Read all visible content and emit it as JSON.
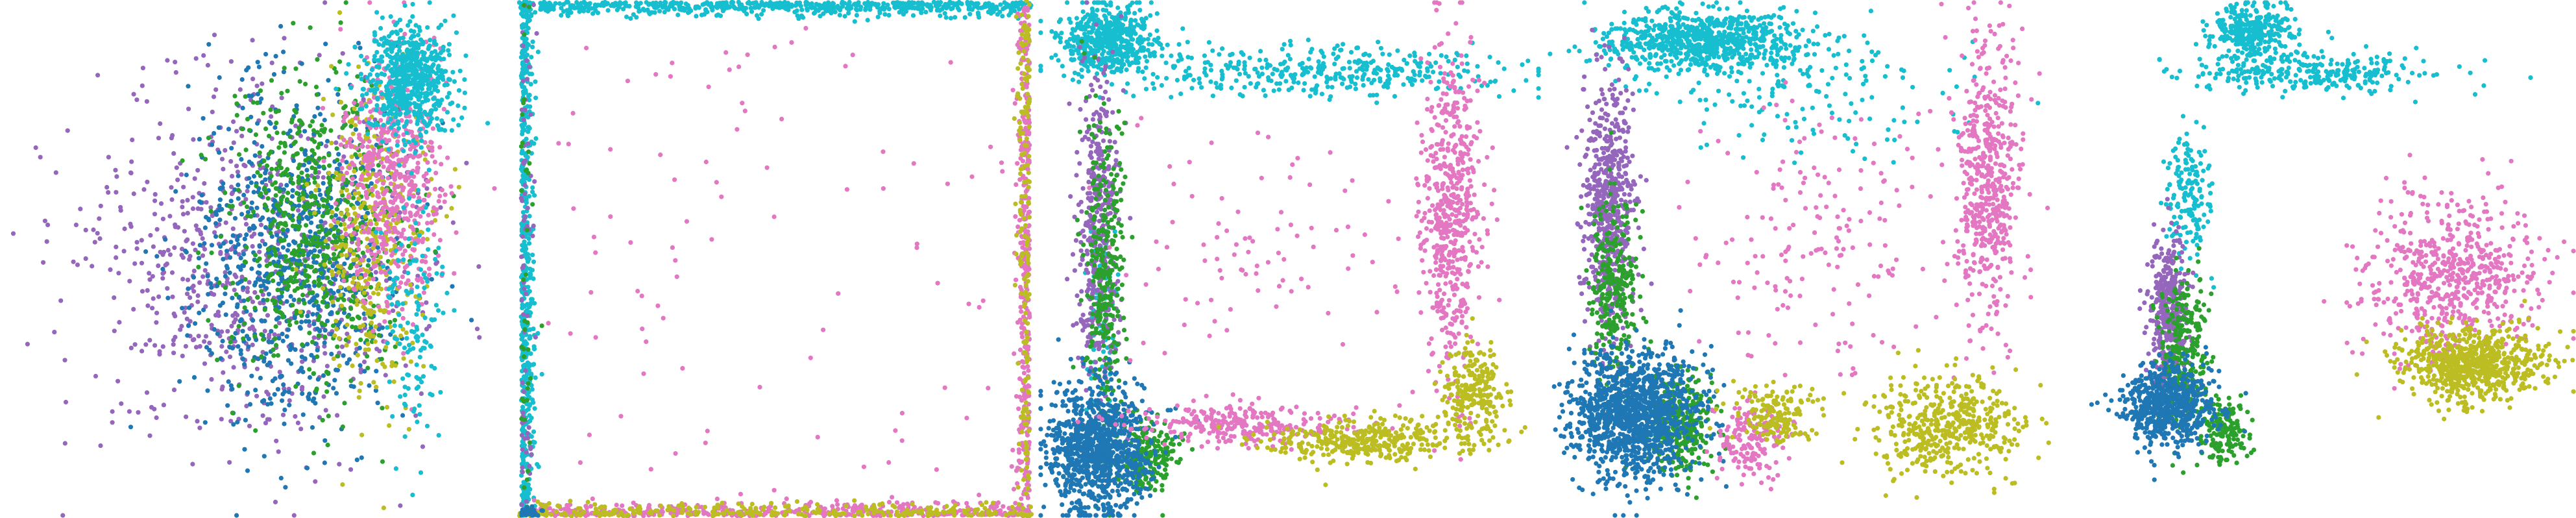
{
  "chart_data": [
    {
      "type": "scatter",
      "panel": "panel-1",
      "series": [
        {
          "color": "#9467bd",
          "clusters": [
            {
              "cx": 0.5,
              "cy": 0.5,
              "sx": 0.34,
              "sy": 0.33,
              "n": 760
            }
          ]
        },
        {
          "color": "#1f77b4",
          "clusters": [
            {
              "cx": 0.57,
              "cy": 0.51,
              "sx": 0.2,
              "sy": 0.34,
              "n": 760
            }
          ]
        },
        {
          "color": "#2ca02c",
          "clusters": [
            {
              "cx": 0.62,
              "cy": 0.45,
              "sx": 0.16,
              "sy": 0.3,
              "n": 640
            }
          ]
        },
        {
          "color": "#bcbd22",
          "clusters": [
            {
              "cx": 0.73,
              "cy": 0.45,
              "sx": 0.1,
              "sy": 0.3,
              "n": 380
            }
          ]
        },
        {
          "color": "#e377c2",
          "clusters": [
            {
              "cx": 0.77,
              "cy": 0.36,
              "sx": 0.1,
              "sy": 0.26,
              "n": 560
            }
          ]
        },
        {
          "color": "#17becf",
          "clusters": [
            {
              "cx": 0.8,
              "cy": 0.15,
              "sx": 0.09,
              "sy": 0.11,
              "n": 620
            },
            {
              "cx": 0.81,
              "cy": 0.62,
              "sx": 0.06,
              "sy": 0.24,
              "n": 140
            }
          ]
        }
      ]
    },
    {
      "type": "scatter",
      "panel": "panel-2",
      "series": [
        {
          "color": "#17becf",
          "clusters": [
            {
              "edge": "top",
              "n": 620
            },
            {
              "edge": "left",
              "n": 540
            }
          ]
        },
        {
          "color": "#e377c2",
          "clusters": [
            {
              "edge": "bottom",
              "n": 460
            },
            {
              "edge": "right",
              "n": 380
            },
            {
              "fill": true,
              "n": 90
            }
          ]
        },
        {
          "color": "#bcbd22",
          "clusters": [
            {
              "edge": "bottom",
              "n": 300
            },
            {
              "edge": "right",
              "n": 180
            }
          ]
        },
        {
          "color": "#9467bd",
          "clusters": [
            {
              "edge": "left",
              "n": 70
            }
          ]
        },
        {
          "color": "#2ca02c",
          "clusters": [
            {
              "edge": "left",
              "n": 40
            }
          ]
        },
        {
          "color": "#1f77b4",
          "clusters": [
            {
              "cx": 0.02,
              "cy": 0.99,
              "sx": 0.02,
              "sy": 0.01,
              "n": 30
            }
          ]
        }
      ]
    },
    {
      "type": "scatter",
      "panel": "panel-3",
      "series": [
        {
          "color": "#17becf",
          "clusters": [
            {
              "cx": 0.14,
              "cy": 0.08,
              "sx": 0.1,
              "sy": 0.07,
              "n": 520
            },
            {
              "cx": 0.55,
              "cy": 0.14,
              "sx": 0.4,
              "sy": 0.05,
              "n": 380
            },
            {
              "cx": 0.13,
              "cy": 0.6,
              "sx": 0.03,
              "sy": 0.24,
              "n": 90
            }
          ]
        },
        {
          "color": "#9467bd",
          "clusters": [
            {
              "cx": 0.12,
              "cy": 0.45,
              "sx": 0.04,
              "sy": 0.34,
              "n": 440
            }
          ]
        },
        {
          "color": "#2ca02c",
          "clusters": [
            {
              "cx": 0.13,
              "cy": 0.5,
              "sx": 0.04,
              "sy": 0.32,
              "n": 320
            },
            {
              "cx": 0.22,
              "cy": 0.88,
              "sx": 0.06,
              "sy": 0.07,
              "n": 220
            }
          ]
        },
        {
          "color": "#1f77b4",
          "clusters": [
            {
              "cx": 0.12,
              "cy": 0.87,
              "sx": 0.1,
              "sy": 0.13,
              "n": 950
            }
          ]
        },
        {
          "color": "#e377c2",
          "clusters": [
            {
              "cx": 0.82,
              "cy": 0.4,
              "sx": 0.06,
              "sy": 0.32,
              "n": 560
            },
            {
              "cx": 0.4,
              "cy": 0.82,
              "sx": 0.22,
              "sy": 0.04,
              "n": 280
            },
            {
              "cx": 0.45,
              "cy": 0.48,
              "sx": 0.3,
              "sy": 0.25,
              "n": 90
            }
          ]
        },
        {
          "color": "#bcbd22",
          "clusters": [
            {
              "cx": 0.66,
              "cy": 0.85,
              "sx": 0.2,
              "sy": 0.04,
              "n": 360
            },
            {
              "cx": 0.87,
              "cy": 0.76,
              "sx": 0.06,
              "sy": 0.09,
              "n": 240
            }
          ]
        }
      ]
    },
    {
      "type": "scatter",
      "panel": "panel-4",
      "series": [
        {
          "color": "#17becf",
          "clusters": [
            {
              "cx": 0.3,
              "cy": 0.08,
              "sx": 0.2,
              "sy": 0.06,
              "n": 760
            },
            {
              "cx": 0.5,
              "cy": 0.18,
              "sx": 0.3,
              "sy": 0.12,
              "n": 160
            }
          ]
        },
        {
          "color": "#9467bd",
          "clusters": [
            {
              "cx": 0.12,
              "cy": 0.4,
              "sx": 0.05,
              "sy": 0.25,
              "n": 600
            }
          ]
        },
        {
          "color": "#2ca02c",
          "clusters": [
            {
              "cx": 0.13,
              "cy": 0.55,
              "sx": 0.05,
              "sy": 0.18,
              "n": 280
            },
            {
              "cx": 0.26,
              "cy": 0.82,
              "sx": 0.06,
              "sy": 0.1,
              "n": 300
            }
          ]
        },
        {
          "color": "#1f77b4",
          "clusters": [
            {
              "cx": 0.17,
              "cy": 0.8,
              "sx": 0.12,
              "sy": 0.12,
              "n": 1250
            }
          ]
        },
        {
          "color": "#e377c2",
          "clusters": [
            {
              "cx": 0.86,
              "cy": 0.35,
              "sx": 0.06,
              "sy": 0.28,
              "n": 520
            },
            {
              "cx": 0.55,
              "cy": 0.45,
              "sx": 0.25,
              "sy": 0.25,
              "n": 180
            },
            {
              "cx": 0.4,
              "cy": 0.85,
              "sx": 0.08,
              "sy": 0.07,
              "n": 160
            }
          ]
        },
        {
          "color": "#bcbd22",
          "clusters": [
            {
              "cx": 0.78,
              "cy": 0.82,
              "sx": 0.14,
              "sy": 0.1,
              "n": 460
            },
            {
              "cx": 0.44,
              "cy": 0.8,
              "sx": 0.08,
              "sy": 0.06,
              "n": 160
            }
          ]
        }
      ]
    },
    {
      "type": "scatter",
      "panel": "panel-5",
      "series": [
        {
          "color": "#17becf",
          "clusters": [
            {
              "cx": 0.36,
              "cy": 0.06,
              "sx": 0.08,
              "sy": 0.05,
              "n": 320
            },
            {
              "cx": 0.48,
              "cy": 0.14,
              "sx": 0.24,
              "sy": 0.04,
              "n": 300
            },
            {
              "cx": 0.24,
              "cy": 0.38,
              "sx": 0.04,
              "sy": 0.12,
              "n": 160
            }
          ]
        },
        {
          "color": "#9467bd",
          "clusters": [
            {
              "cx": 0.2,
              "cy": 0.6,
              "sx": 0.04,
              "sy": 0.15,
              "n": 360
            }
          ]
        },
        {
          "color": "#2ca02c",
          "clusters": [
            {
              "cx": 0.23,
              "cy": 0.68,
              "sx": 0.05,
              "sy": 0.15,
              "n": 300
            },
            {
              "cx": 0.31,
              "cy": 0.83,
              "sx": 0.04,
              "sy": 0.06,
              "n": 160
            }
          ]
        },
        {
          "color": "#1f77b4",
          "clusters": [
            {
              "cx": 0.2,
              "cy": 0.78,
              "sx": 0.09,
              "sy": 0.08,
              "n": 620
            }
          ]
        },
        {
          "color": "#e377c2",
          "clusters": [
            {
              "cx": 0.76,
              "cy": 0.53,
              "sx": 0.17,
              "sy": 0.15,
              "n": 600
            }
          ]
        },
        {
          "color": "#bcbd22",
          "clusters": [
            {
              "cx": 0.79,
              "cy": 0.7,
              "sx": 0.15,
              "sy": 0.07,
              "n": 720
            }
          ]
        }
      ]
    }
  ]
}
